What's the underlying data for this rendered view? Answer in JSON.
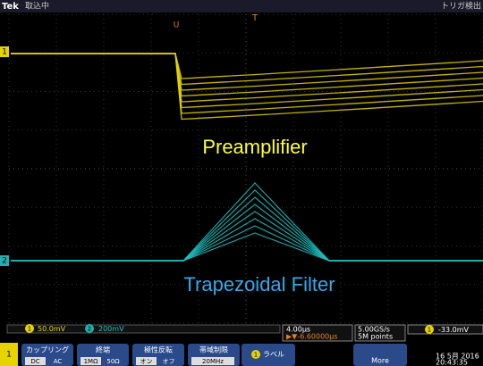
{
  "header": {
    "brand": "Tek",
    "status": "取込中",
    "trigger": "トリガ検出"
  },
  "screen": {
    "ch1_marker": "1",
    "ch2_marker": "2",
    "trigger_marker": "T",
    "position_marker": "U",
    "labels": [
      "Preamplifier",
      "Trapezoidal Filter"
    ]
  },
  "readout": {
    "ch1_num": "1",
    "ch1_scale": "50.0mV",
    "ch2_num": "2",
    "ch2_scale": "200mV",
    "horizontal_scale": "4.00µs",
    "horizontal_delay": "▶▼-6.60000µs",
    "sample_rate": "5.00GS/s",
    "record_length": "5M points",
    "trigger_ch": "1",
    "trigger_level": "-33.0mV"
  },
  "menu": {
    "channel": "1",
    "buttons": [
      {
        "title": "カップリング",
        "options": [
          "DC",
          "AC"
        ]
      },
      {
        "title": "終端",
        "options": [
          "1MΩ",
          "50Ω"
        ]
      },
      {
        "title": "極性反転",
        "options": [
          "オン",
          "オフ"
        ]
      },
      {
        "title": "帯域制限",
        "options": [
          "20MHz"
        ]
      }
    ],
    "label_num": "1",
    "label": "ラベル",
    "more": "More",
    "date": "16 5月 2016",
    "time": "20:43:35"
  }
}
